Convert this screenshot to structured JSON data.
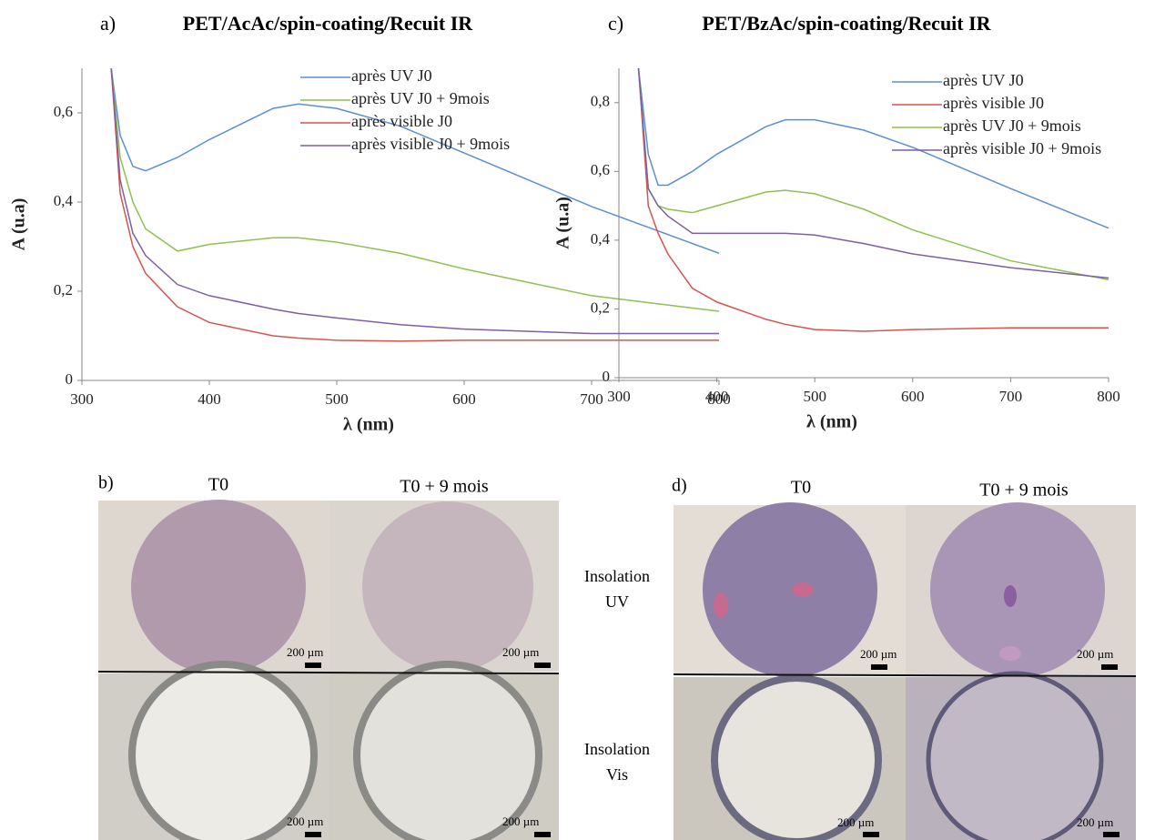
{
  "chart_data": [
    {
      "type": "line",
      "panel_label": "a)",
      "title": "PET/AcAc/spin-coating/Recuit IR",
      "x_label": "λ (nm)",
      "y_label": "A (u.a)",
      "x": [
        323,
        330,
        340,
        350,
        375,
        400,
        450,
        470,
        500,
        550,
        600,
        700,
        800
      ],
      "xlim": [
        300,
        800
      ],
      "xticks": [
        300,
        400,
        500,
        600,
        700,
        800
      ],
      "ylim": [
        0,
        0.7
      ],
      "yticks": [
        0,
        {
          "value": 0.2,
          "label": "0,2"
        },
        {
          "value": 0.4,
          "label": "0,4"
        },
        {
          "value": 0.6,
          "label": "0,6"
        }
      ],
      "legend": "top-right",
      "series": [
        {
          "name": "après UV J0",
          "color": "#5b8fd4",
          "values": [
            0.7,
            0.55,
            0.48,
            0.47,
            0.5,
            0.54,
            0.61,
            0.62,
            0.61,
            0.57,
            0.51,
            0.39,
            0.285
          ]
        },
        {
          "name": "après UV J0 + 9mois",
          "color": "#8fc04f",
          "values": [
            0.7,
            0.5,
            0.4,
            0.34,
            0.29,
            0.305,
            0.32,
            0.32,
            0.31,
            0.285,
            0.25,
            0.19,
            0.155
          ]
        },
        {
          "name": "après visible J0",
          "color": "#d9534f",
          "values": [
            0.7,
            0.42,
            0.3,
            0.24,
            0.165,
            0.13,
            0.1,
            0.095,
            0.09,
            0.088,
            0.09,
            0.09,
            0.09
          ]
        },
        {
          "name": "après visible J0 + 9mois",
          "color": "#7d5fa6",
          "values": [
            0.7,
            0.45,
            0.33,
            0.28,
            0.215,
            0.19,
            0.16,
            0.15,
            0.14,
            0.125,
            0.115,
            0.105,
            0.105
          ]
        }
      ]
    },
    {
      "type": "line",
      "panel_label": "c)",
      "title": "PET/BzAc/spin-coating/Recuit IR",
      "x_label": "λ (nm)",
      "y_label": "A (u.a)",
      "x": [
        320,
        330,
        340,
        350,
        375,
        400,
        450,
        470,
        500,
        550,
        600,
        700,
        800
      ],
      "xlim": [
        300,
        800
      ],
      "xticks": [
        300,
        400,
        500,
        600,
        700,
        800
      ],
      "ylim": [
        0,
        0.9
      ],
      "yticks": [
        0,
        {
          "value": 0.2,
          "label": "0,2"
        },
        {
          "value": 0.4,
          "label": "0,4"
        },
        {
          "value": 0.6,
          "label": "0,6"
        },
        {
          "value": 0.8,
          "label": "0,8"
        }
      ],
      "legend": "top-right",
      "series": [
        {
          "name": "après UV J0",
          "color": "#5b8fd4",
          "values": [
            0.9,
            0.65,
            0.56,
            0.56,
            0.6,
            0.65,
            0.73,
            0.75,
            0.75,
            0.72,
            0.67,
            0.55,
            0.435
          ]
        },
        {
          "name": "après visible J0",
          "color": "#d9534f",
          "values": [
            0.9,
            0.5,
            0.42,
            0.36,
            0.26,
            0.22,
            0.17,
            0.155,
            0.14,
            0.135,
            0.14,
            0.145,
            0.145
          ]
        },
        {
          "name": "après UV J0 + 9mois",
          "color": "#8fc04f",
          "values": [
            0.9,
            0.55,
            0.5,
            0.49,
            0.48,
            0.5,
            0.54,
            0.545,
            0.535,
            0.49,
            0.43,
            0.34,
            0.285
          ]
        },
        {
          "name": "après visible J0 + 9mois",
          "color": "#7d5fa6",
          "values": [
            0.9,
            0.55,
            0.5,
            0.47,
            0.42,
            0.42,
            0.42,
            0.42,
            0.415,
            0.39,
            0.36,
            0.32,
            0.29
          ]
        }
      ]
    }
  ],
  "micrographs": [
    {
      "label": "b)",
      "columns": [
        "T0",
        "T0 + 9 mois"
      ],
      "scale_bar": "200 µm"
    },
    {
      "label": "d)",
      "columns": [
        "T0",
        "T0 + 9 mois"
      ],
      "scale_bar": "200 µm"
    }
  ],
  "rows": [
    [
      "Insolation",
      "UV"
    ],
    [
      "Insolation",
      "Vis"
    ]
  ]
}
